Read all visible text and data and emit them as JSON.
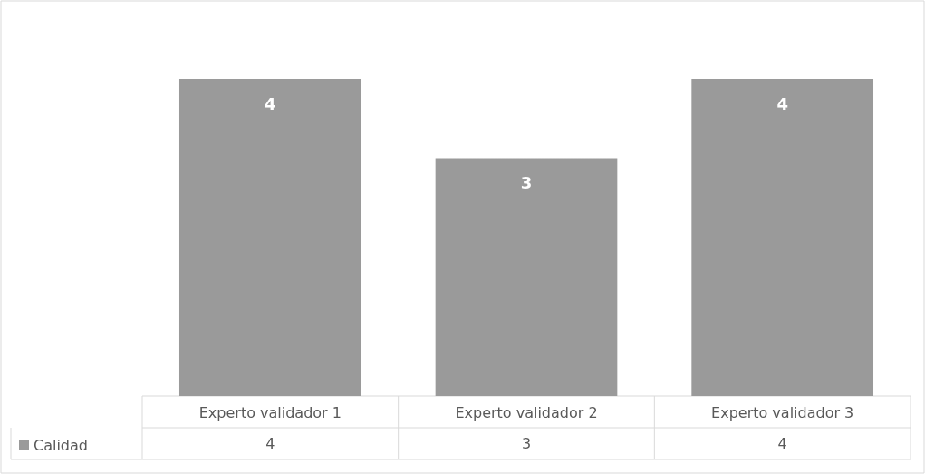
{
  "chart_data": {
    "type": "bar",
    "categories": [
      "Experto validador 1",
      "Experto validador 2",
      "Experto validador 3"
    ],
    "series": [
      {
        "name": "Calidad",
        "color": "#9a9a9a",
        "values": [
          4,
          3,
          4
        ],
        "value_labels": [
          "4",
          "3",
          "4"
        ]
      }
    ],
    "annotations": [
      "4",
      "3",
      "4"
    ],
    "legend": "bottom left"
  }
}
